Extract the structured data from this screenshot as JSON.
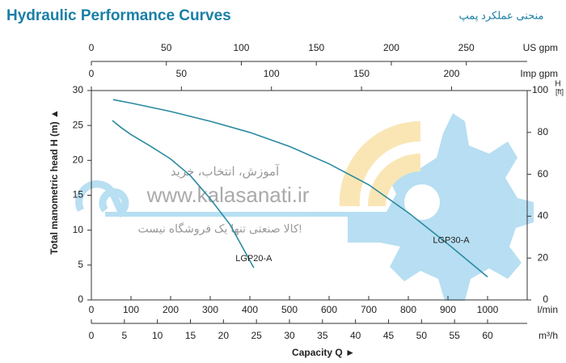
{
  "chart_data": {
    "type": "line",
    "title": "Hydraulic Performance Curves",
    "title_fa": "منحنی عملکرد پمپ",
    "xlabel": "Capacity Q ►",
    "xunit": "l/min",
    "ylabel": "Total manometric head H (m) ▲",
    "xlim": [
      0,
      1100
    ],
    "xticks": [
      0,
      100,
      200,
      300,
      400,
      500,
      600,
      700,
      800,
      900,
      1000
    ],
    "ylim": [
      0,
      30
    ],
    "yticks": [
      0,
      5,
      10,
      15,
      20,
      25,
      30
    ],
    "y2label": "H",
    "y2unit": "[ft]",
    "y2lim": [
      0,
      100
    ],
    "y2ticks": [
      0,
      20,
      40,
      60,
      80,
      100
    ],
    "extra_x_axes": [
      {
        "label": "US gpm",
        "lim": [
          0,
          290.6
        ],
        "ticks": [
          0,
          50,
          100,
          150,
          200,
          250
        ]
      },
      {
        "label": "Imp gpm",
        "lim": [
          0,
          242
        ],
        "ticks": [
          0,
          50,
          100,
          150,
          200
        ]
      },
      {
        "label": "m³/h",
        "lim": [
          0,
          66
        ],
        "ticks": [
          0,
          5,
          10,
          15,
          20,
          25,
          30,
          35,
          40,
          45,
          50,
          55,
          60
        ]
      }
    ],
    "series": [
      {
        "name": "LGP20-A",
        "color": "#2a8aa0",
        "x": [
          53,
          75,
          100,
          150,
          200,
          250,
          300,
          350,
          410
        ],
        "values": [
          25.7,
          24.7,
          23.7,
          22,
          20.2,
          17.8,
          14.5,
          10.8,
          4.6
        ]
      },
      {
        "name": "LGP30-A",
        "color": "#2a8aa0",
        "x": [
          55,
          100,
          200,
          300,
          400,
          500,
          600,
          700,
          800,
          900,
          1000
        ],
        "values": [
          28.7,
          28.2,
          27,
          25.6,
          24,
          22,
          19.5,
          16.5,
          12.5,
          8,
          3.3
        ]
      }
    ],
    "watermark": [
      "آموزش، انتخاب، خرید",
      "www.kalasanati.ir",
      "کالا صنعتی تنها یک فروشگاه نیست!"
    ]
  }
}
